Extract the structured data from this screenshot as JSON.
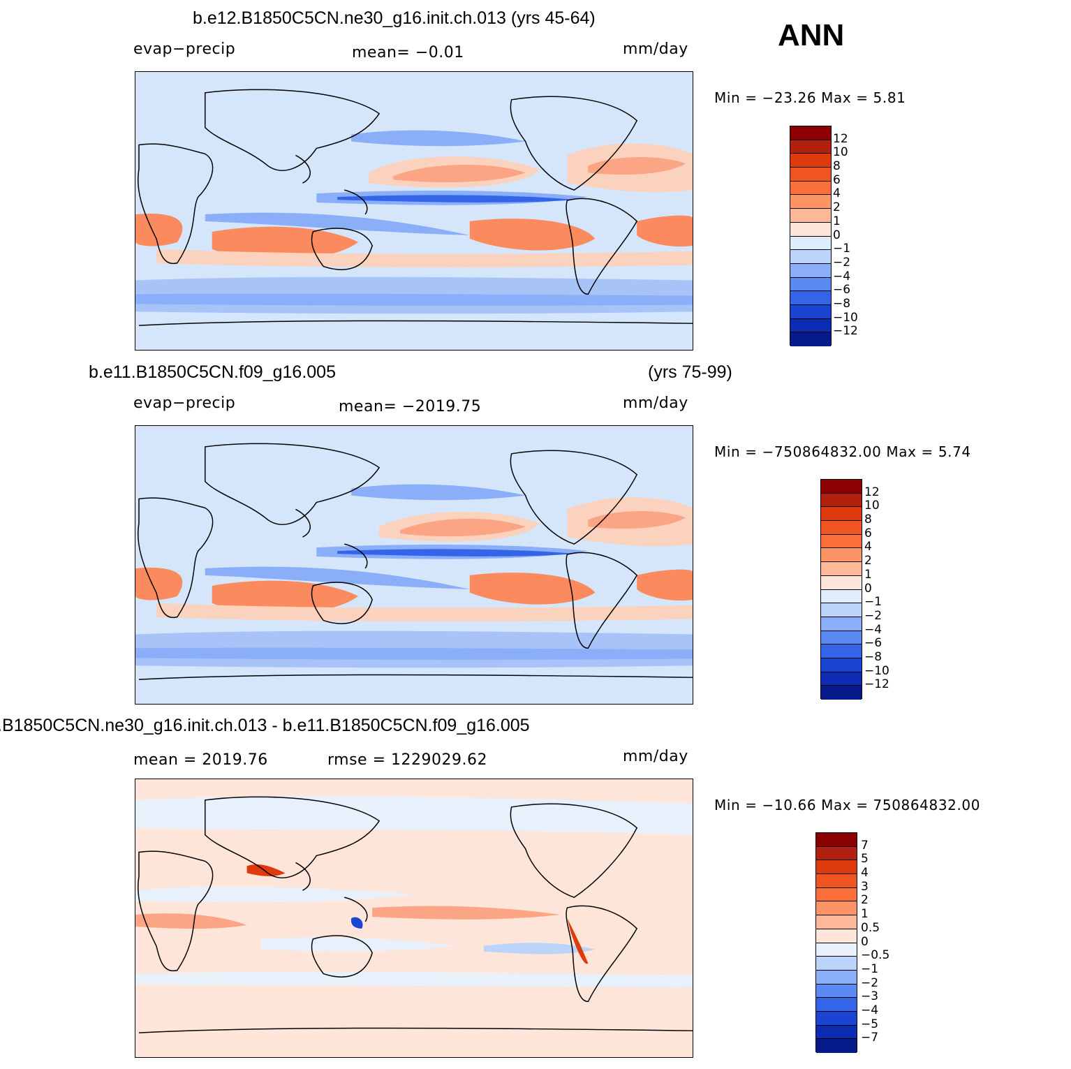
{
  "season": "ANN",
  "panels": [
    {
      "title": "b.e12.B1850C5CN.ne30_g16.init.ch.013 (yrs 45-64)",
      "left_label": "evap−precip",
      "center_label": "mean=   −0.01",
      "units": "mm/day",
      "minmax": "Min  =  −23.26  Max  =     5.81",
      "levels": [
        "12",
        "10",
        "8",
        "6",
        "4",
        "2",
        "1",
        "0",
        "−1",
        "−2",
        "−4",
        "−6",
        "−8",
        "−10",
        "−12"
      ],
      "colors": [
        "#8b0000",
        "#b2200f",
        "#df3a0d",
        "#f05421",
        "#fb6f3b",
        "#fc9465",
        "#fdb899",
        "#fde6d9",
        "#dfecfb",
        "#bcd3fa",
        "#8aaef7",
        "#5b8af2",
        "#3465e8",
        "#1a45d2",
        "#0c2cb4",
        "#061a8a"
      ]
    },
    {
      "title_left": "b.e11.B1850C5CN.f09_g16.005",
      "title_right": "(yrs 75-99)",
      "left_label": "evap−precip",
      "center_label": "mean=  −2019.75",
      "units": "mm/day",
      "minmax": "Min  =  −750864832.00  Max  =     5.74",
      "levels": [
        "12",
        "10",
        "8",
        "6",
        "4",
        "2",
        "1",
        "0",
        "−1",
        "−2",
        "−4",
        "−6",
        "−8",
        "−10",
        "−12"
      ],
      "colors": [
        "#8b0000",
        "#b2200f",
        "#df3a0d",
        "#f05421",
        "#fb6f3b",
        "#fc9465",
        "#fdb899",
        "#fde6d9",
        "#dfecfb",
        "#bcd3fa",
        "#8aaef7",
        "#5b8af2",
        "#3465e8",
        "#1a45d2",
        "#0c2cb4",
        "#061a8a"
      ]
    },
    {
      "title": ".B1850C5CN.ne30_g16.init.ch.013 - b.e11.B1850C5CN.f09_g16.005",
      "left_label": "mean  =  2019.76",
      "center_label": "rmse  =  1229029.62",
      "units": "mm/day",
      "minmax": "Min  =  −10.66  Max  =  750864832.00",
      "levels": [
        "7",
        "5",
        "4",
        "3",
        "2",
        "1",
        "0.5",
        "0",
        "−0.5",
        "−1",
        "−2",
        "−3",
        "−4",
        "−5",
        "−7"
      ],
      "colors": [
        "#8b0000",
        "#b2200f",
        "#df3a0d",
        "#f05421",
        "#fb6f3b",
        "#fc9465",
        "#fdb899",
        "#fde6d9",
        "#e8f0fb",
        "#bcd3fa",
        "#8aaef7",
        "#5b8af2",
        "#3465e8",
        "#1a45d2",
        "#0c2cb4",
        "#061a8a"
      ]
    }
  ]
}
